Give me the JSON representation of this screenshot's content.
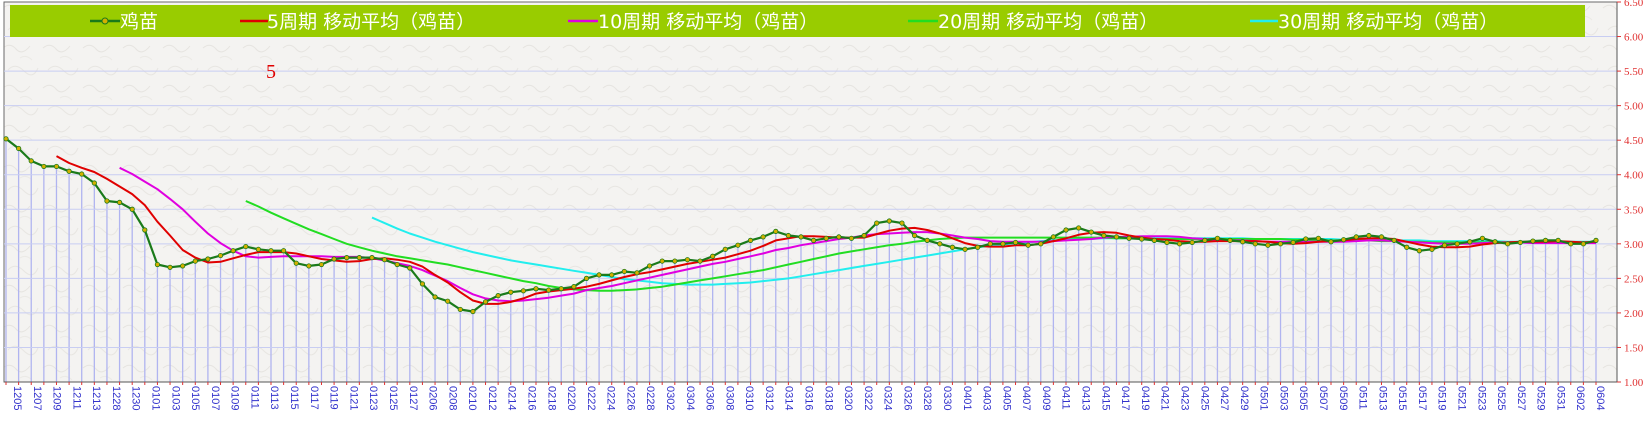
{
  "chart_data": {
    "type": "line",
    "title": "",
    "xlabel": "",
    "ylabel": "",
    "annotation": "5",
    "ylim": [
      1.0,
      6.5
    ],
    "y_ticks": [
      "1.00",
      "1.50",
      "2.00",
      "2.50",
      "3.00",
      "3.50",
      "4.00",
      "4.50",
      "5.00",
      "5.50",
      "6.00",
      "6.50"
    ],
    "x_tick_labels": [
      "1205",
      "1207",
      "1209",
      "1211",
      "1213",
      "1228",
      "1230",
      "0101",
      "0103",
      "0105",
      "0107",
      "0109",
      "0111",
      "0113",
      "0115",
      "0117",
      "0119",
      "0121",
      "0123",
      "0125",
      "0127",
      "0206",
      "0208",
      "0210",
      "0212",
      "0214",
      "0216",
      "0218",
      "0220",
      "0222",
      "0224",
      "0226",
      "0228",
      "0302",
      "0304",
      "0306",
      "0308",
      "0310",
      "0312",
      "0314",
      "0316",
      "0318",
      "0320",
      "0322",
      "0324",
      "0326",
      "0328",
      "0330",
      "0401",
      "0403",
      "0405",
      "0407",
      "0409",
      "0411",
      "0413",
      "0415",
      "0417",
      "0419",
      "0421",
      "0423",
      "0425",
      "0427",
      "0429",
      "0501",
      "0503",
      "0505",
      "0507",
      "0509",
      "0511",
      "0513",
      "0515",
      "0517",
      "0519",
      "0521",
      "0523",
      "0525",
      "0527",
      "0529",
      "0531",
      "0602",
      "0604"
    ],
    "grid": true,
    "legend_position": "top",
    "colors": {
      "legend_bg": "#99cc00",
      "price": "#1a7a1a",
      "price_marker": "#d4b000",
      "ma5": "#e00000",
      "ma10": "#e000e0",
      "ma20": "#22dd22",
      "ma30": "#22eeee",
      "bars": "#b0b4f0",
      "axis_text": "#e03030",
      "tick_text": "#3333cc",
      "annotation": "#e00000"
    },
    "series": [
      {
        "name": "鸡苗",
        "key": "price",
        "values": [
          4.52,
          4.38,
          4.2,
          4.12,
          4.12,
          4.05,
          4.01,
          3.88,
          3.62,
          3.6,
          3.5,
          3.2,
          2.7,
          2.66,
          2.68,
          2.75,
          2.78,
          2.83,
          2.9,
          2.96,
          2.92,
          2.9,
          2.9,
          2.72,
          2.68,
          2.7,
          2.78,
          2.8,
          2.8,
          2.8,
          2.77,
          2.7,
          2.65,
          2.42,
          2.23,
          2.17,
          2.05,
          2.02,
          2.16,
          2.25,
          2.3,
          2.32,
          2.35,
          2.33,
          2.35,
          2.38,
          2.5,
          2.55,
          2.55,
          2.6,
          2.58,
          2.68,
          2.75,
          2.75,
          2.77,
          2.75,
          2.82,
          2.92,
          2.98,
          3.05,
          3.1,
          3.18,
          3.12,
          3.1,
          3.05,
          3.08,
          3.1,
          3.08,
          3.12,
          3.3,
          3.33,
          3.3,
          3.12,
          3.05,
          3.0,
          2.95,
          2.92,
          2.95,
          3.0,
          3.0,
          3.02,
          2.98,
          3.0,
          3.1,
          3.2,
          3.23,
          3.17,
          3.12,
          3.1,
          3.08,
          3.07,
          3.05,
          3.02,
          3.0,
          3.02,
          3.05,
          3.08,
          3.05,
          3.03,
          3.0,
          2.98,
          3.0,
          3.02,
          3.07,
          3.08,
          3.03,
          3.06,
          3.1,
          3.12,
          3.1,
          3.05,
          2.95,
          2.9,
          2.92,
          2.98,
          3.0,
          3.03,
          3.08,
          3.03,
          3.0,
          3.02,
          3.04,
          3.05,
          3.05,
          3.0,
          3.0,
          3.05
        ]
      },
      {
        "name": "5周期 移动平均（鸡苗）",
        "key": "ma5",
        "values": [
          null,
          null,
          null,
          null,
          4.27,
          4.17,
          4.1,
          4.04,
          3.94,
          3.83,
          3.72,
          3.56,
          3.32,
          3.12,
          2.91,
          2.8,
          2.73,
          2.74,
          2.79,
          2.84,
          2.88,
          2.88,
          2.88,
          2.86,
          2.82,
          2.78,
          2.76,
          2.74,
          2.75,
          2.78,
          2.79,
          2.77,
          2.74,
          2.67,
          2.55,
          2.44,
          2.3,
          2.18,
          2.13,
          2.13,
          2.16,
          2.21,
          2.28,
          2.31,
          2.33,
          2.35,
          2.38,
          2.42,
          2.47,
          2.52,
          2.56,
          2.59,
          2.63,
          2.67,
          2.71,
          2.74,
          2.77,
          2.8,
          2.85,
          2.9,
          2.97,
          3.05,
          3.08,
          3.11,
          3.11,
          3.1,
          3.09,
          3.09,
          3.09,
          3.14,
          3.19,
          3.22,
          3.23,
          3.2,
          3.15,
          3.08,
          3.01,
          2.97,
          2.96,
          2.96,
          2.98,
          2.98,
          3.0,
          3.04,
          3.08,
          3.13,
          3.16,
          3.17,
          3.16,
          3.12,
          3.09,
          3.07,
          3.06,
          3.04,
          3.03,
          3.03,
          3.04,
          3.04,
          3.04,
          3.04,
          3.03,
          3.01,
          3.0,
          3.01,
          3.03,
          3.04,
          3.05,
          3.07,
          3.08,
          3.08,
          3.07,
          3.03,
          2.99,
          2.96,
          2.95,
          2.95,
          2.96,
          2.99,
          3.01,
          3.02,
          3.03,
          3.03,
          3.03,
          3.04,
          3.03,
          3.02,
          3.03
        ]
      },
      {
        "name": "10周期 移动平均（鸡苗）",
        "key": "ma10",
        "values": [
          null,
          null,
          null,
          null,
          null,
          null,
          null,
          null,
          null,
          4.1,
          4.01,
          3.9,
          3.79,
          3.65,
          3.5,
          3.32,
          3.15,
          3.01,
          2.9,
          2.82,
          2.8,
          2.81,
          2.82,
          2.82,
          2.82,
          2.82,
          2.81,
          2.81,
          2.81,
          2.79,
          2.76,
          2.72,
          2.68,
          2.62,
          2.54,
          2.46,
          2.36,
          2.27,
          2.21,
          2.18,
          2.17,
          2.18,
          2.2,
          2.22,
          2.25,
          2.28,
          2.33,
          2.36,
          2.39,
          2.43,
          2.47,
          2.51,
          2.55,
          2.59,
          2.63,
          2.67,
          2.71,
          2.74,
          2.78,
          2.82,
          2.86,
          2.91,
          2.94,
          2.98,
          3.01,
          3.04,
          3.07,
          3.09,
          3.12,
          3.14,
          3.15,
          3.16,
          3.17,
          3.17,
          3.15,
          3.12,
          3.09,
          3.07,
          3.04,
          3.03,
          3.03,
          3.03,
          3.03,
          3.04,
          3.05,
          3.06,
          3.07,
          3.09,
          3.1,
          3.1,
          3.11,
          3.11,
          3.11,
          3.1,
          3.08,
          3.07,
          3.06,
          3.05,
          3.05,
          3.04,
          3.03,
          3.03,
          3.03,
          3.03,
          3.03,
          3.03,
          3.03,
          3.04,
          3.05,
          3.05,
          3.04,
          3.03,
          3.02,
          3.01,
          3.0,
          3.0,
          3.0,
          3.01,
          3.02,
          3.02,
          3.02,
          3.01,
          3.01,
          3.01,
          3.01,
          3.01,
          3.01
        ]
      },
      {
        "name": "20周期 移动平均（鸡苗）",
        "key": "ma20",
        "values": [
          null,
          null,
          null,
          null,
          null,
          null,
          null,
          null,
          null,
          null,
          null,
          null,
          null,
          null,
          null,
          null,
          null,
          null,
          null,
          3.62,
          3.54,
          3.45,
          3.37,
          3.29,
          3.21,
          3.14,
          3.07,
          3.0,
          2.95,
          2.9,
          2.86,
          2.82,
          2.79,
          2.76,
          2.73,
          2.7,
          2.66,
          2.62,
          2.58,
          2.54,
          2.5,
          2.46,
          2.43,
          2.39,
          2.36,
          2.34,
          2.33,
          2.32,
          2.32,
          2.33,
          2.34,
          2.36,
          2.38,
          2.41,
          2.44,
          2.47,
          2.5,
          2.53,
          2.56,
          2.59,
          2.62,
          2.66,
          2.7,
          2.74,
          2.78,
          2.82,
          2.86,
          2.89,
          2.92,
          2.95,
          2.98,
          3.0,
          3.03,
          3.05,
          3.07,
          3.08,
          3.09,
          3.09,
          3.09,
          3.09,
          3.09,
          3.09,
          3.09,
          3.09,
          3.09,
          3.09,
          3.09,
          3.09,
          3.08,
          3.08,
          3.08,
          3.07,
          3.07,
          3.07,
          3.07,
          3.07,
          3.07,
          3.07,
          3.07,
          3.07,
          3.07,
          3.07,
          3.06,
          3.06,
          3.05,
          3.05,
          3.05,
          3.05,
          3.05,
          3.04,
          3.04,
          3.03,
          3.03,
          3.02,
          3.02,
          3.02,
          3.02,
          3.02,
          3.02,
          3.02,
          3.02,
          3.02,
          3.02,
          3.02,
          3.02,
          3.02,
          3.02
        ]
      },
      {
        "name": "30周期 移动平均（鸡苗）",
        "key": "ma30",
        "values": [
          null,
          null,
          null,
          null,
          null,
          null,
          null,
          null,
          null,
          null,
          null,
          null,
          null,
          null,
          null,
          null,
          null,
          null,
          null,
          null,
          null,
          null,
          null,
          null,
          null,
          null,
          null,
          null,
          null,
          3.38,
          3.3,
          3.22,
          3.15,
          3.09,
          3.03,
          2.98,
          2.93,
          2.88,
          2.84,
          2.8,
          2.76,
          2.73,
          2.7,
          2.67,
          2.64,
          2.61,
          2.58,
          2.55,
          2.52,
          2.49,
          2.47,
          2.45,
          2.43,
          2.42,
          2.41,
          2.41,
          2.41,
          2.42,
          2.43,
          2.44,
          2.46,
          2.48,
          2.5,
          2.53,
          2.56,
          2.59,
          2.62,
          2.65,
          2.68,
          2.71,
          2.74,
          2.77,
          2.8,
          2.83,
          2.86,
          2.89,
          2.92,
          2.95,
          2.97,
          2.99,
          3.01,
          3.02,
          3.04,
          3.05,
          3.06,
          3.07,
          3.07,
          3.08,
          3.08,
          3.08,
          3.08,
          3.08,
          3.08,
          3.08,
          3.08,
          3.08,
          3.08,
          3.08,
          3.08,
          3.07,
          3.07,
          3.07,
          3.07,
          3.07,
          3.07,
          3.07,
          3.06,
          3.06,
          3.06,
          3.06,
          3.05,
          3.05,
          3.05,
          3.04,
          3.04,
          3.04,
          3.04,
          3.04,
          3.04,
          3.03,
          3.03,
          3.03,
          3.03,
          3.03,
          3.03,
          3.03,
          3.03
        ]
      }
    ]
  }
}
